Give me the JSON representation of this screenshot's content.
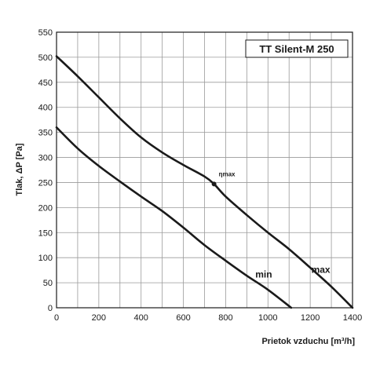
{
  "chart_data": {
    "type": "line",
    "title": "TT Silent-M 250",
    "xlabel": "Prietok vzduchu  [m³/h]",
    "ylabel": "Tlak, ΔP [Pa]",
    "xlim": [
      0,
      1400
    ],
    "ylim": [
      0,
      550
    ],
    "x_ticks": [
      0,
      200,
      400,
      600,
      800,
      1000,
      1200,
      1400
    ],
    "y_ticks": [
      0,
      50,
      100,
      150,
      200,
      250,
      300,
      350,
      400,
      450,
      500,
      550
    ],
    "x_tick_labels": [
      "0",
      "200",
      "400",
      "600",
      "800",
      "1000",
      "1200",
      "1400"
    ],
    "y_tick_labels": [
      "0",
      "50",
      "100",
      "150",
      "200",
      "250",
      "300",
      "350",
      "400",
      "450",
      "500",
      "550"
    ],
    "grid": true,
    "series": [
      {
        "name": "max",
        "x": [
          0,
          100,
          200,
          300,
          400,
          500,
          600,
          700,
          745,
          800,
          900,
          1000,
          1100,
          1200,
          1300,
          1400
        ],
        "y": [
          502,
          462,
          420,
          378,
          340,
          310,
          285,
          262,
          247,
          222,
          185,
          150,
          117,
          80,
          42,
          0
        ]
      },
      {
        "name": "min",
        "x": [
          0,
          100,
          200,
          300,
          400,
          500,
          600,
          700,
          800,
          900,
          1000,
          1110
        ],
        "y": [
          360,
          318,
          283,
          252,
          222,
          193,
          160,
          125,
          94,
          64,
          36,
          0
        ]
      }
    ],
    "annotations": [
      {
        "label": "ηmax",
        "x": 745,
        "y": 247
      }
    ]
  }
}
